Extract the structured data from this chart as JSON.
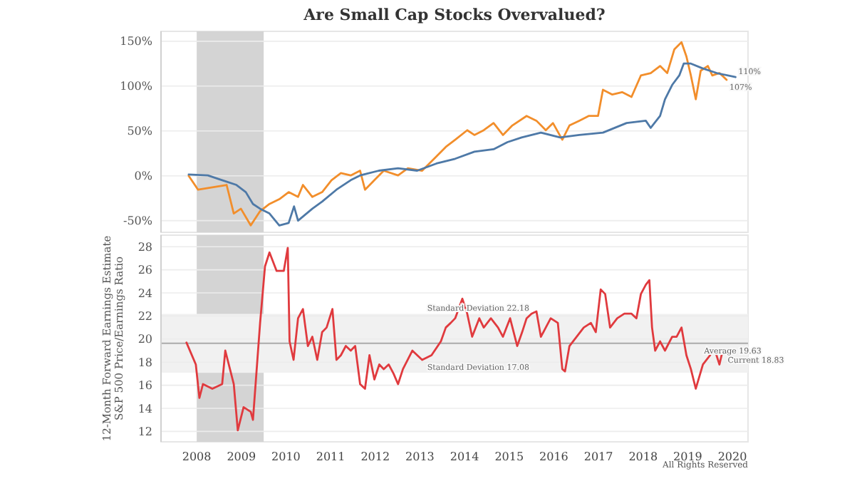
{
  "chart_data": [
    {
      "type": "line",
      "title": "Are Small Cap Stocks Overvalued?",
      "xlim": [
        2007.2,
        2020.35
      ],
      "xticks": [
        2008,
        2009,
        2010,
        2011,
        2012,
        2013,
        2014,
        2015,
        2016,
        2017,
        2018,
        2019,
        2020
      ],
      "ylim": [
        -63,
        161
      ],
      "yticks": [
        {
          "value": -50,
          "label": "-50%"
        },
        {
          "value": 0,
          "label": "0%"
        },
        {
          "value": 50,
          "label": "50%"
        },
        {
          "value": 100,
          "label": "100%"
        },
        {
          "value": 150,
          "label": "150%"
        }
      ],
      "tick_labels": "y",
      "grid": "y",
      "bands": [
        {
          "axis": "x",
          "from": 2008,
          "to": 2009.5,
          "color": "#d4d4d4"
        }
      ],
      "annotations": [
        {
          "text": "110%",
          "x": 2020.07,
          "y": 110
        },
        {
          "text": "107%",
          "x": 2019.87,
          "y": 107
        }
      ],
      "series": [
        {
          "color": "#f28e2b",
          "x": [
            2007.82,
            2008.03,
            2008.35,
            2008.67,
            2008.83,
            2008.99,
            2009.21,
            2009.42,
            2009.63,
            2009.85,
            2010.06,
            2010.27,
            2010.38,
            2010.59,
            2010.81,
            2011.02,
            2011.23,
            2011.45,
            2011.66,
            2011.77,
            2011.98,
            2012.19,
            2012.51,
            2012.73,
            2013.05,
            2013.37,
            2013.58,
            2013.79,
            2014.06,
            2014.22,
            2014.43,
            2014.65,
            2014.86,
            2015.07,
            2015.39,
            2015.61,
            2015.82,
            2015.98,
            2016.19,
            2016.35,
            2016.57,
            2016.78,
            2016.99,
            2017.1,
            2017.31,
            2017.53,
            2017.74,
            2017.95,
            2018.17,
            2018.38,
            2018.54,
            2018.7,
            2018.86,
            2018.97,
            2019.07,
            2019.18,
            2019.29,
            2019.45,
            2019.55,
            2019.71,
            2019.87
          ],
          "values": [
            0,
            -15.5,
            -12.9,
            -10.2,
            -42,
            -36.7,
            -55.3,
            -39.4,
            -31.4,
            -26.1,
            -18.2,
            -23.5,
            -10.2,
            -23.5,
            -18.2,
            -4.9,
            3,
            0.4,
            5.7,
            -15.5,
            -4.9,
            5.7,
            0.4,
            8.4,
            5.7,
            21.6,
            32.2,
            40.2,
            50.8,
            45.5,
            50.8,
            58.8,
            45.5,
            56.1,
            66.7,
            61.4,
            50.8,
            58.8,
            40.2,
            56.1,
            61.4,
            66.7,
            66.7,
            95.9,
            90.6,
            93.2,
            87.9,
            111.8,
            114.5,
            122.4,
            114.5,
            141,
            148.9,
            133,
            111.8,
            85.3,
            117.1,
            122.4,
            111.8,
            114.5,
            107
          ]
        },
        {
          "color": "#4e79a7",
          "x": [
            2007.82,
            2008.25,
            2008.57,
            2008.89,
            2009.1,
            2009.26,
            2009.42,
            2009.63,
            2009.85,
            2010.06,
            2010.18,
            2010.27,
            2010.59,
            2010.81,
            2011.13,
            2011.45,
            2011.66,
            2012.08,
            2012.51,
            2012.94,
            2013.37,
            2013.79,
            2014.22,
            2014.65,
            2014.96,
            2015.28,
            2015.71,
            2016.14,
            2016.57,
            2017.1,
            2017.63,
            2018.06,
            2018.17,
            2018.38,
            2018.49,
            2018.65,
            2018.81,
            2018.91,
            2019.07,
            2019.33,
            2019.65,
            2020.07
          ],
          "values": [
            1.5,
            0.4,
            -4.9,
            -10.2,
            -18.2,
            -31.4,
            -36.7,
            -42,
            -55.3,
            -52.6,
            -34.1,
            -50,
            -36.7,
            -28.8,
            -15.5,
            -4.9,
            0.4,
            5.7,
            8.4,
            5.7,
            13.7,
            19,
            26.9,
            29.6,
            37.5,
            42.8,
            48.1,
            42.8,
            45.5,
            48.1,
            58.8,
            61.4,
            53.4,
            66.7,
            85.3,
            101.2,
            111.8,
            125.1,
            125.1,
            119.8,
            114.5,
            110
          ]
        }
      ]
    },
    {
      "type": "line",
      "ylabel": "12-Month Forward Earnings Estimate\nS&P 500 Price/Earnings Ratio",
      "xlim": [
        2007.2,
        2020.35
      ],
      "xticks": [
        2008,
        2009,
        2010,
        2011,
        2012,
        2013,
        2014,
        2015,
        2016,
        2017,
        2018,
        2019,
        2020
      ],
      "ylim": [
        11.1,
        29
      ],
      "yticks": [
        12,
        14,
        16,
        18,
        20,
        22,
        24,
        26,
        28
      ],
      "grid": "y",
      "bands": [
        {
          "axis": "x",
          "from": 2008,
          "to": 2009.5,
          "color": "#d4d4d4"
        },
        {
          "axis": "y",
          "from": 17.08,
          "to": 22.18,
          "color": "#f1f1f1"
        }
      ],
      "ref_lines": [
        {
          "axis": "y",
          "value": 19.63,
          "color": "#aaaaaa"
        }
      ],
      "annotations": [
        {
          "text": "Standard Deviation 22.18",
          "x": 2013.1,
          "y": 22.18
        },
        {
          "text": "Average 19.63",
          "x": 2019.3,
          "y": 19.63
        },
        {
          "text": "Standard Deviation 17.08",
          "x": 2013.1,
          "y": 17.08
        },
        {
          "text": "Current 18.83",
          "x": 2019.83,
          "y": 18.83
        },
        "All Rights Reserved"
      ],
      "series": [
        {
          "color": "#e03a3e",
          "x": [
            2007.77,
            2007.98,
            2008.06,
            2008.14,
            2008.35,
            2008.57,
            2008.64,
            2008.83,
            2008.92,
            2009.05,
            2009.21,
            2009.26,
            2009.42,
            2009.53,
            2009.63,
            2009.79,
            2009.95,
            2010.04,
            2010.08,
            2010.17,
            2010.27,
            2010.38,
            2010.49,
            2010.59,
            2010.7,
            2010.81,
            2010.91,
            2011.04,
            2011.13,
            2011.23,
            2011.34,
            2011.45,
            2011.55,
            2011.66,
            2011.77,
            2011.87,
            2011.98,
            2012.09,
            2012.19,
            2012.3,
            2012.41,
            2012.51,
            2012.62,
            2012.83,
            2013.05,
            2013.26,
            2013.47,
            2013.58,
            2013.69,
            2013.79,
            2013.95,
            2014.06,
            2014.17,
            2014.33,
            2014.43,
            2014.59,
            2014.75,
            2014.86,
            2015.02,
            2015.18,
            2015.29,
            2015.39,
            2015.5,
            2015.61,
            2015.71,
            2015.82,
            2015.93,
            2016.09,
            2016.19,
            2016.25,
            2016.35,
            2016.51,
            2016.67,
            2016.83,
            2016.94,
            2017.05,
            2017.15,
            2017.26,
            2017.42,
            2017.58,
            2017.74,
            2017.85,
            2017.95,
            2018.06,
            2018.14,
            2018.2,
            2018.27,
            2018.38,
            2018.49,
            2018.65,
            2018.75,
            2018.86,
            2018.97,
            2019.07,
            2019.18,
            2019.34,
            2019.5,
            2019.61,
            2019.71,
            2019.77
          ],
          "values": [
            19.7,
            17.8,
            14.9,
            16.1,
            15.7,
            16.1,
            19,
            16.1,
            12.1,
            14.1,
            13.7,
            13,
            21.4,
            26.3,
            27.5,
            25.9,
            25.9,
            27.9,
            19.8,
            18.2,
            21.8,
            22.6,
            19.4,
            20.2,
            18.2,
            20.6,
            21,
            22.6,
            18.2,
            18.6,
            19.4,
            19,
            19.4,
            16.1,
            15.7,
            18.6,
            16.5,
            17.8,
            17.4,
            17.8,
            17,
            16.1,
            17.4,
            19,
            18.2,
            18.6,
            19.8,
            21,
            21.4,
            21.8,
            23.5,
            22.2,
            20.2,
            21.8,
            21,
            21.8,
            21,
            20.2,
            21.8,
            19.4,
            20.6,
            21.8,
            22.2,
            22.4,
            20.2,
            21,
            21.8,
            21.4,
            17.4,
            17.2,
            19.4,
            20.2,
            21,
            21.4,
            20.6,
            24.3,
            23.9,
            21,
            21.8,
            22.2,
            22.2,
            21.8,
            23.9,
            24.7,
            25.1,
            21,
            19,
            19.8,
            19,
            20.2,
            20.2,
            21,
            18.6,
            17.4,
            15.7,
            17.8,
            18.6,
            19,
            17.8,
            18.8
          ]
        }
      ]
    }
  ]
}
